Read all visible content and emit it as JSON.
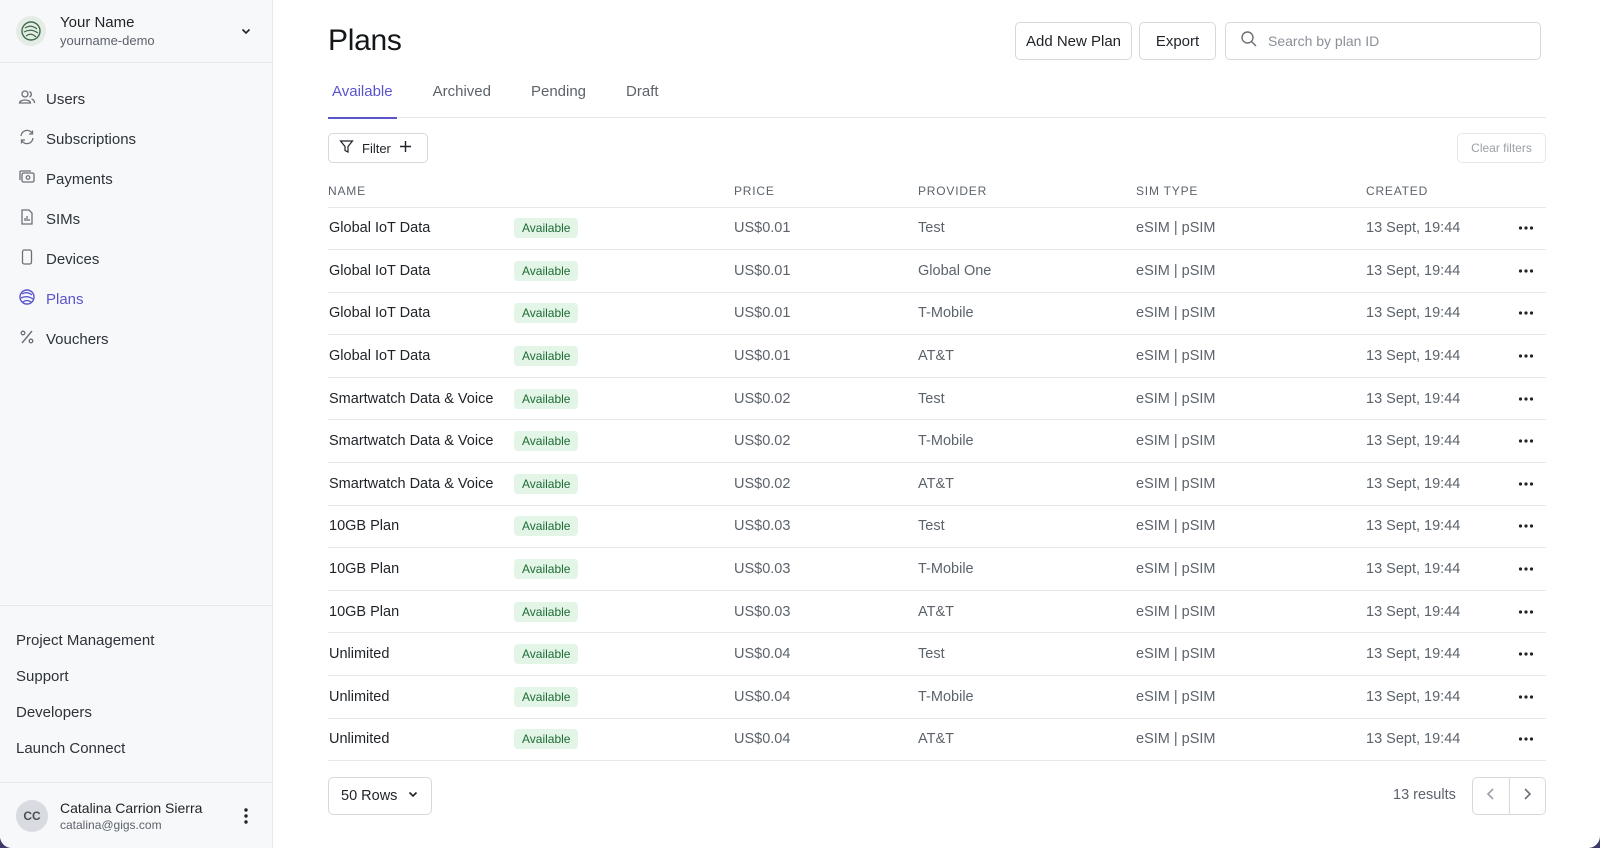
{
  "workspace": {
    "name": "Your Name",
    "slug": "yourname-demo"
  },
  "nav": {
    "items": [
      {
        "label": "Users",
        "icon": "users-icon"
      },
      {
        "label": "Subscriptions",
        "icon": "refresh-icon"
      },
      {
        "label": "Payments",
        "icon": "payments-icon"
      },
      {
        "label": "SIMs",
        "icon": "sim-icon"
      },
      {
        "label": "Devices",
        "icon": "device-icon"
      },
      {
        "label": "Plans",
        "icon": "globe-icon",
        "active": true
      },
      {
        "label": "Vouchers",
        "icon": "percent-icon"
      }
    ]
  },
  "bottom_links": [
    "Project Management",
    "Support",
    "Developers",
    "Launch Connect"
  ],
  "user": {
    "initials": "CC",
    "name": "Catalina Carrion Sierra",
    "email": "catalina@gigs.com"
  },
  "page": {
    "title": "Plans"
  },
  "toolbar": {
    "add_label": "Add New Plan",
    "export_label": "Export",
    "search_placeholder": "Search by plan ID"
  },
  "tabs": [
    {
      "label": "Available",
      "active": true
    },
    {
      "label": "Archived"
    },
    {
      "label": "Pending"
    },
    {
      "label": "Draft"
    }
  ],
  "filters": {
    "filter_label": "Filter",
    "clear_label": "Clear filters"
  },
  "table": {
    "columns": [
      "NAME",
      "PRICE",
      "PROVIDER",
      "SIM TYPE",
      "CREATED"
    ],
    "rows": [
      {
        "name": "Global IoT Data",
        "status": "Available",
        "price": "US$0.01",
        "provider": "Test",
        "sim_type": "eSIM | pSIM",
        "created": "13 Sept, 19:44"
      },
      {
        "name": "Global IoT Data",
        "status": "Available",
        "price": "US$0.01",
        "provider": "Global One",
        "sim_type": "eSIM | pSIM",
        "created": "13 Sept, 19:44"
      },
      {
        "name": "Global IoT Data",
        "status": "Available",
        "price": "US$0.01",
        "provider": "T-Mobile",
        "sim_type": "eSIM | pSIM",
        "created": "13 Sept, 19:44"
      },
      {
        "name": "Global IoT Data",
        "status": "Available",
        "price": "US$0.01",
        "provider": "AT&T",
        "sim_type": "eSIM | pSIM",
        "created": "13 Sept, 19:44"
      },
      {
        "name": "Smartwatch Data & Voice",
        "status": "Available",
        "price": "US$0.02",
        "provider": "Test",
        "sim_type": "eSIM | pSIM",
        "created": "13 Sept, 19:44"
      },
      {
        "name": "Smartwatch Data & Voice",
        "status": "Available",
        "price": "US$0.02",
        "provider": "T-Mobile",
        "sim_type": "eSIM | pSIM",
        "created": "13 Sept, 19:44"
      },
      {
        "name": "Smartwatch Data & Voice",
        "status": "Available",
        "price": "US$0.02",
        "provider": "AT&T",
        "sim_type": "eSIM | pSIM",
        "created": "13 Sept, 19:44"
      },
      {
        "name": "10GB Plan",
        "status": "Available",
        "price": "US$0.03",
        "provider": "Test",
        "sim_type": "eSIM | pSIM",
        "created": "13 Sept, 19:44"
      },
      {
        "name": "10GB Plan",
        "status": "Available",
        "price": "US$0.03",
        "provider": "T-Mobile",
        "sim_type": "eSIM | pSIM",
        "created": "13 Sept, 19:44"
      },
      {
        "name": "10GB Plan",
        "status": "Available",
        "price": "US$0.03",
        "provider": "AT&T",
        "sim_type": "eSIM | pSIM",
        "created": "13 Sept, 19:44"
      },
      {
        "name": "Unlimited",
        "status": "Available",
        "price": "US$0.04",
        "provider": "Test",
        "sim_type": "eSIM | pSIM",
        "created": "13 Sept, 19:44"
      },
      {
        "name": "Unlimited",
        "status": "Available",
        "price": "US$0.04",
        "provider": "T-Mobile",
        "sim_type": "eSIM | pSIM",
        "created": "13 Sept, 19:44"
      },
      {
        "name": "Unlimited",
        "status": "Available",
        "price": "US$0.04",
        "provider": "AT&T",
        "sim_type": "eSIM | pSIM",
        "created": "13 Sept, 19:44"
      }
    ]
  },
  "footer": {
    "rows_label": "50 Rows",
    "results_label": "13 results"
  },
  "colors": {
    "accent": "#5b55cc",
    "badge_bg": "#e3f5e6",
    "badge_text": "#1e6b35"
  }
}
